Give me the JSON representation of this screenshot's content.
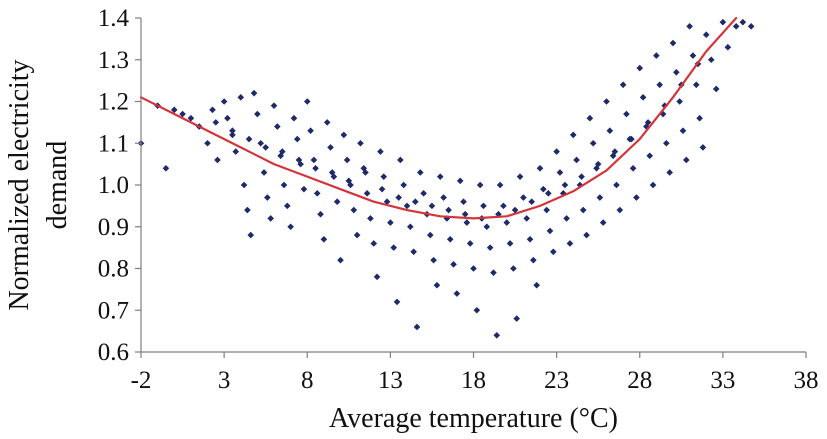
{
  "chart_data": {
    "type": "scatter",
    "xlabel": "Average temperature (°C)",
    "ylabel": [
      "Normalized electricity",
      "demand"
    ],
    "xlim": [
      -2,
      38
    ],
    "ylim": [
      0.6,
      1.4
    ],
    "xticks": [
      -2,
      3,
      8,
      13,
      18,
      23,
      28,
      33,
      38
    ],
    "xtick_labels": [
      "-2",
      "3",
      "8",
      "13",
      "18",
      "23",
      "28",
      "33",
      "38"
    ],
    "yticks": [
      0.6,
      0.7,
      0.8,
      0.9,
      1.0,
      1.1,
      1.2,
      1.3,
      1.4
    ],
    "ytick_labels": [
      "0.6",
      "0.7",
      "0.8",
      "0.9",
      "1.0",
      "1.1",
      "1.2",
      "1.3",
      "1.4"
    ],
    "grid": false,
    "legend": "none",
    "series": [
      {
        "kind": "scatter",
        "color": "#1f2a6b",
        "marker": "diamond",
        "points": [
          [
            -2.0,
            1.1
          ],
          [
            -0.5,
            1.04
          ],
          [
            0.0,
            1.18
          ],
          [
            0.5,
            1.17
          ],
          [
            1.5,
            1.14
          ],
          [
            2.0,
            1.1
          ],
          [
            2.3,
            1.18
          ],
          [
            2.6,
            1.06
          ],
          [
            3.0,
            1.2
          ],
          [
            3.2,
            1.16
          ],
          [
            3.5,
            1.12
          ],
          [
            3.7,
            1.08
          ],
          [
            4.0,
            1.21
          ],
          [
            4.2,
            1.0
          ],
          [
            4.4,
            0.94
          ],
          [
            4.6,
            0.88
          ],
          [
            4.8,
            1.22
          ],
          [
            5.0,
            1.17
          ],
          [
            5.2,
            1.1
          ],
          [
            5.4,
            1.03
          ],
          [
            5.6,
            0.97
          ],
          [
            5.8,
            0.92
          ],
          [
            6.0,
            1.19
          ],
          [
            6.2,
            1.14
          ],
          [
            6.4,
            1.07
          ],
          [
            6.6,
            1.0
          ],
          [
            6.8,
            0.95
          ],
          [
            7.0,
            0.9
          ],
          [
            7.2,
            1.16
          ],
          [
            7.4,
            1.11
          ],
          [
            7.6,
            1.05
          ],
          [
            7.8,
            0.99
          ],
          [
            8.0,
            1.2
          ],
          [
            8.2,
            1.13
          ],
          [
            8.4,
            1.06
          ],
          [
            8.6,
            0.98
          ],
          [
            8.8,
            0.93
          ],
          [
            9.0,
            0.87
          ],
          [
            9.2,
            1.15
          ],
          [
            9.4,
            1.09
          ],
          [
            9.6,
            1.02
          ],
          [
            9.8,
            0.96
          ],
          [
            10.0,
            0.82
          ],
          [
            10.2,
            1.12
          ],
          [
            10.4,
            1.06
          ],
          [
            10.6,
            1.0
          ],
          [
            10.8,
            0.94
          ],
          [
            11.0,
            0.88
          ],
          [
            11.2,
            1.1
          ],
          [
            11.4,
            1.04
          ],
          [
            11.6,
            0.98
          ],
          [
            11.8,
            0.92
          ],
          [
            12.0,
            0.86
          ],
          [
            12.2,
            0.78
          ],
          [
            12.4,
            1.08
          ],
          [
            12.6,
            1.02
          ],
          [
            12.8,
            0.96
          ],
          [
            13.0,
            0.91
          ],
          [
            13.2,
            0.85
          ],
          [
            13.4,
            0.72
          ],
          [
            13.6,
            1.06
          ],
          [
            13.8,
            1.0
          ],
          [
            14.0,
            0.95
          ],
          [
            14.2,
            0.9
          ],
          [
            14.4,
            0.84
          ],
          [
            14.6,
            0.66
          ],
          [
            14.8,
            1.03
          ],
          [
            15.0,
            0.98
          ],
          [
            15.2,
            0.93
          ],
          [
            15.4,
            0.88
          ],
          [
            15.6,
            0.82
          ],
          [
            15.8,
            0.76
          ],
          [
            16.0,
            1.02
          ],
          [
            16.2,
            0.97
          ],
          [
            16.4,
            0.92
          ],
          [
            16.6,
            0.87
          ],
          [
            16.8,
            0.81
          ],
          [
            17.0,
            0.74
          ],
          [
            17.2,
            1.01
          ],
          [
            17.4,
            0.96
          ],
          [
            17.6,
            0.91
          ],
          [
            17.8,
            0.86
          ],
          [
            18.0,
            0.8
          ],
          [
            18.2,
            0.7
          ],
          [
            18.4,
            1.0
          ],
          [
            18.6,
            0.95
          ],
          [
            18.8,
            0.9
          ],
          [
            19.0,
            0.85
          ],
          [
            19.2,
            0.79
          ],
          [
            19.4,
            0.64
          ],
          [
            19.6,
            1.0
          ],
          [
            19.8,
            0.95
          ],
          [
            20.0,
            0.91
          ],
          [
            20.2,
            0.86
          ],
          [
            20.4,
            0.8
          ],
          [
            20.6,
            0.68
          ],
          [
            20.8,
            1.02
          ],
          [
            21.0,
            0.97
          ],
          [
            21.2,
            0.92
          ],
          [
            21.4,
            0.87
          ],
          [
            21.6,
            0.82
          ],
          [
            21.8,
            0.76
          ],
          [
            22.0,
            1.04
          ],
          [
            22.2,
            0.99
          ],
          [
            22.4,
            0.94
          ],
          [
            22.6,
            0.89
          ],
          [
            22.8,
            0.84
          ],
          [
            23.0,
            1.08
          ],
          [
            23.2,
            1.03
          ],
          [
            23.4,
            0.98
          ],
          [
            23.6,
            0.92
          ],
          [
            23.8,
            0.86
          ],
          [
            24.0,
            1.12
          ],
          [
            24.2,
            1.06
          ],
          [
            24.4,
            1.0
          ],
          [
            24.6,
            0.94
          ],
          [
            24.8,
            0.88
          ],
          [
            25.0,
            1.16
          ],
          [
            25.2,
            1.1
          ],
          [
            25.4,
            1.04
          ],
          [
            25.6,
            0.97
          ],
          [
            25.8,
            0.91
          ],
          [
            26.0,
            1.2
          ],
          [
            26.2,
            1.13
          ],
          [
            26.4,
            1.07
          ],
          [
            26.6,
            1.0
          ],
          [
            26.8,
            0.94
          ],
          [
            27.0,
            1.24
          ],
          [
            27.2,
            1.17
          ],
          [
            27.4,
            1.11
          ],
          [
            27.6,
            1.04
          ],
          [
            27.8,
            0.97
          ],
          [
            28.0,
            1.28
          ],
          [
            28.2,
            1.21
          ],
          [
            28.4,
            1.14
          ],
          [
            28.6,
            1.07
          ],
          [
            28.8,
            1.0
          ],
          [
            29.0,
            1.31
          ],
          [
            29.2,
            1.24
          ],
          [
            29.4,
            1.17
          ],
          [
            29.6,
            1.1
          ],
          [
            29.8,
            1.03
          ],
          [
            30.0,
            1.34
          ],
          [
            30.2,
            1.27
          ],
          [
            30.4,
            1.2
          ],
          [
            30.6,
            1.13
          ],
          [
            30.8,
            1.06
          ],
          [
            31.0,
            1.38
          ],
          [
            31.2,
            1.31
          ],
          [
            31.4,
            1.24
          ],
          [
            31.6,
            1.16
          ],
          [
            31.8,
            1.09
          ],
          [
            32.0,
            1.36
          ],
          [
            32.3,
            1.3
          ],
          [
            32.6,
            1.23
          ],
          [
            33.0,
            1.39
          ],
          [
            33.3,
            1.33
          ],
          [
            33.8,
            1.38
          ],
          [
            34.2,
            1.39
          ],
          [
            34.7,
            1.38
          ],
          [
            10.5,
            1.01
          ],
          [
            11.5,
            1.03
          ],
          [
            12.5,
            0.99
          ],
          [
            13.5,
            0.97
          ],
          [
            14.5,
            0.96
          ],
          [
            15.5,
            0.95
          ],
          [
            16.5,
            0.94
          ],
          [
            17.5,
            0.93
          ],
          [
            18.5,
            0.92
          ],
          [
            19.5,
            0.93
          ],
          [
            20.5,
            0.94
          ],
          [
            21.5,
            0.96
          ],
          [
            22.5,
            0.98
          ],
          [
            23.5,
            1.0
          ],
          [
            24.5,
            1.02
          ],
          [
            25.5,
            1.05
          ],
          [
            26.5,
            1.08
          ],
          [
            27.5,
            1.11
          ],
          [
            28.5,
            1.15
          ],
          [
            29.5,
            1.19
          ],
          [
            30.5,
            1.24
          ],
          [
            31.5,
            1.29
          ],
          [
            6.5,
            1.08
          ],
          [
            7.5,
            1.06
          ],
          [
            8.5,
            1.04
          ],
          [
            9.5,
            1.03
          ],
          [
            5.5,
            1.09
          ],
          [
            4.5,
            1.11
          ],
          [
            3.5,
            1.13
          ],
          [
            2.5,
            1.15
          ],
          [
            1.0,
            1.16
          ],
          [
            -1.0,
            1.19
          ]
        ]
      },
      {
        "kind": "line",
        "color": "#d4353b",
        "points": [
          [
            -2,
            1.21
          ],
          [
            0,
            1.17
          ],
          [
            2,
            1.13
          ],
          [
            4,
            1.09
          ],
          [
            6,
            1.05
          ],
          [
            8,
            1.02
          ],
          [
            10,
            0.99
          ],
          [
            12,
            0.96
          ],
          [
            14,
            0.94
          ],
          [
            16,
            0.925
          ],
          [
            18,
            0.92
          ],
          [
            20,
            0.925
          ],
          [
            22,
            0.95
          ],
          [
            24,
            0.985
          ],
          [
            26,
            1.035
          ],
          [
            28,
            1.11
          ],
          [
            30,
            1.21
          ],
          [
            32,
            1.32
          ],
          [
            33.8,
            1.4
          ]
        ]
      }
    ]
  }
}
